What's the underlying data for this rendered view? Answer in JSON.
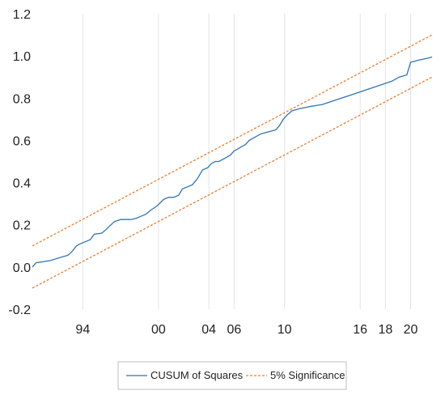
{
  "chart_data": {
    "type": "line",
    "title": "",
    "xlabel": "",
    "ylabel": "",
    "ylim": [
      -0.2,
      1.2
    ],
    "yticks": [
      "-0.2",
      "0.0",
      "0.2",
      "0.4",
      "0.6",
      "0.8",
      "1.0",
      "1.2"
    ],
    "xticks": [
      {
        "label": "94",
        "x": 1994
      },
      {
        "label": "00",
        "x": 2000
      },
      {
        "label": "04",
        "x": 2004
      },
      {
        "label": "06",
        "x": 2006
      },
      {
        "label": "10",
        "x": 2010
      },
      {
        "label": "16",
        "x": 2016
      },
      {
        "label": "18",
        "x": 2018
      },
      {
        "label": "20",
        "x": 2020
      }
    ],
    "grid": "vertical",
    "legend_position": "bottom",
    "series": [
      {
        "name": "CUSUM of Squares",
        "color": "#2e75b6",
        "style": "solid",
        "x": [
          1990.0,
          1990.3,
          1991.4,
          1992.5,
          1992.8,
          1993.1,
          1993.5,
          1993.8,
          1994.6,
          1994.9,
          1995.5,
          1995.8,
          1996.5,
          1997.0,
          1997.3,
          1997.8,
          1998.2,
          1998.6,
          1999.0,
          1999.4,
          1999.9,
          2000.4,
          2000.8,
          2001.2,
          2001.6,
          2001.9,
          2002.3,
          2002.7,
          2003.1,
          2003.5,
          2003.9,
          2004.2,
          2004.5,
          2004.8,
          2005.1,
          2005.4,
          2005.7,
          2006.0,
          2006.3,
          2006.6,
          2006.9,
          2007.2,
          2007.5,
          2007.8,
          2008.1,
          2008.4,
          2008.7,
          2009.0,
          2009.3,
          2009.6,
          2009.9,
          2010.2,
          2010.4,
          2010.6,
          2010.9,
          2011.2,
          2011.6,
          2012.0,
          2012.5,
          2013.0,
          2013.5,
          2014.0,
          2014.5,
          2015.0,
          2015.5,
          2016.0,
          2016.5,
          2017.0,
          2017.5,
          2018.0,
          2018.5,
          2018.8,
          2019.1,
          2019.4,
          2019.7,
          2020.0,
          2020.3,
          2020.6,
          2021.0,
          2021.4,
          2021.7
        ],
        "values": [
          0.0,
          0.02,
          0.03,
          0.05,
          0.055,
          0.07,
          0.1,
          0.11,
          0.13,
          0.155,
          0.16,
          0.175,
          0.215,
          0.225,
          0.225,
          0.225,
          0.23,
          0.24,
          0.25,
          0.27,
          0.29,
          0.32,
          0.33,
          0.33,
          0.34,
          0.37,
          0.38,
          0.39,
          0.42,
          0.46,
          0.47,
          0.49,
          0.5,
          0.5,
          0.51,
          0.52,
          0.53,
          0.55,
          0.56,
          0.57,
          0.58,
          0.6,
          0.61,
          0.62,
          0.63,
          0.635,
          0.64,
          0.645,
          0.65,
          0.67,
          0.7,
          0.72,
          0.73,
          0.74,
          0.745,
          0.75,
          0.755,
          0.76,
          0.765,
          0.77,
          0.78,
          0.79,
          0.8,
          0.81,
          0.82,
          0.83,
          0.84,
          0.85,
          0.86,
          0.87,
          0.88,
          0.89,
          0.9,
          0.905,
          0.91,
          0.97,
          0.975,
          0.98,
          0.985,
          0.99,
          0.995
        ]
      },
      {
        "name": "5% Significance",
        "color": "#ed7d31",
        "style": "dashed",
        "x": [
          1990.0,
          2021.7
        ],
        "values": [
          0.1,
          1.1
        ]
      },
      {
        "name": "",
        "color": "#ed7d31",
        "style": "dashed",
        "x": [
          1990.0,
          2021.7
        ],
        "values": [
          -0.1,
          0.9
        ]
      }
    ]
  }
}
